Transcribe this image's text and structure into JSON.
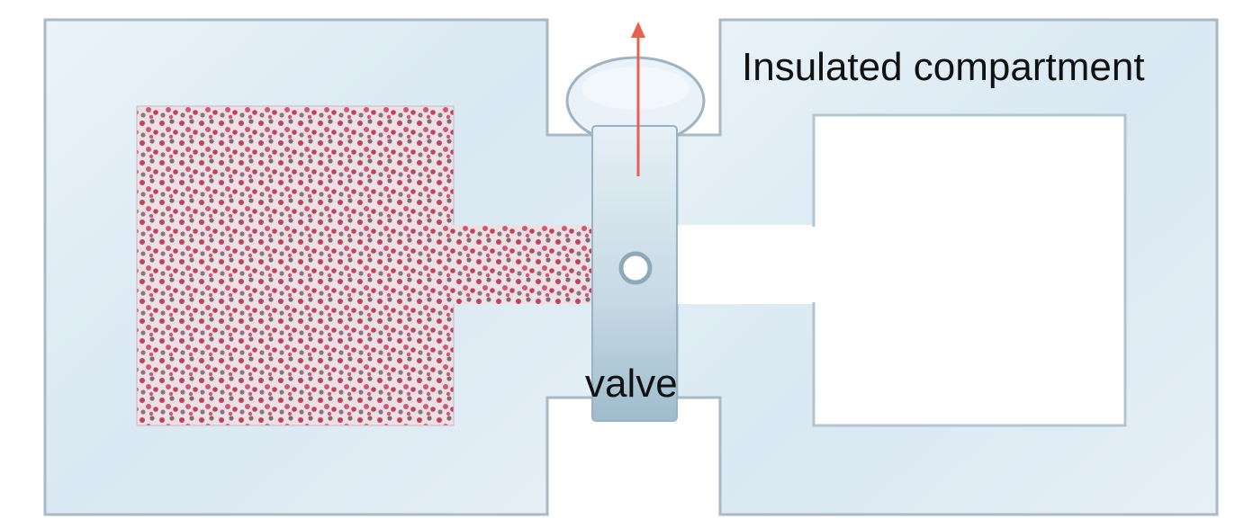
{
  "labels": {
    "compartment": "Insulated compartment",
    "valve": "valve"
  },
  "colors": {
    "container_fill": "#e2eef6",
    "container_stroke": "#a9b9c6",
    "inner_fill": "#ffffff",
    "gas_fill": "#ead6dc",
    "molecule": "#c04a64",
    "valve_fill": "#b9d0dd",
    "arrow": "#e8604f"
  },
  "icons": {
    "arrow": "arrow-up-icon",
    "valve_hole": "circle-icon"
  }
}
